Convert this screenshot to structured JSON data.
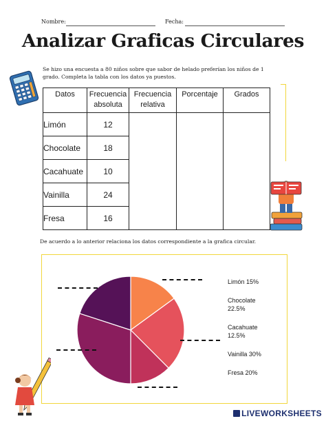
{
  "header": {
    "name_label": "Nombre:",
    "date_label": "Fecha:"
  },
  "title": "Analizar Graficas Circulares",
  "instructions": {
    "line1": "Se hizo una encuesta a 80 niños sobre que sabor de helado preferían los niños de 1",
    "line2": "grado. Completa la tabla con los datos ya puestos."
  },
  "table": {
    "headers": [
      {
        "line1": "Datos",
        "line2": ""
      },
      {
        "line1": "Frecuencia",
        "line2": "absoluta"
      },
      {
        "line1": "Frecuencia",
        "line2": "relativa"
      },
      {
        "line1": "Porcentaje",
        "line2": ""
      },
      {
        "line1": "Grados",
        "line2": ""
      }
    ],
    "rows": [
      {
        "category": "Limón",
        "freq": "12"
      },
      {
        "category": "Chocolate",
        "freq": "18"
      },
      {
        "category": "Cacahuate",
        "freq": "10"
      },
      {
        "category": "Vainilla",
        "freq": "24"
      },
      {
        "category": "Fresa",
        "freq": "16"
      }
    ]
  },
  "instructions2": "De acuerdo a lo anterior relaciona los datos correspondiente a la grafica circular.",
  "chart_data": {
    "type": "pie",
    "categories": [
      "Limón",
      "Chocolate",
      "Cacahuate",
      "Vainilla",
      "Fresa"
    ],
    "values": [
      15,
      22.5,
      12.5,
      30,
      20
    ],
    "slice_colors": [
      "#f7834a",
      "#e5525c",
      "#c0325a",
      "#8a1d5d",
      "#551257"
    ],
    "legend": [
      {
        "line1": "Limón 15%",
        "line2": ""
      },
      {
        "line1": "Chocolate",
        "line2": "22.5%"
      },
      {
        "line1": "Cacahuate",
        "line2": "12.5%"
      },
      {
        "line1": "Vainilla 30%",
        "line2": ""
      },
      {
        "line1": "Fresa 20%",
        "line2": ""
      }
    ]
  },
  "watermark": "LIVEWORKSHEETS"
}
